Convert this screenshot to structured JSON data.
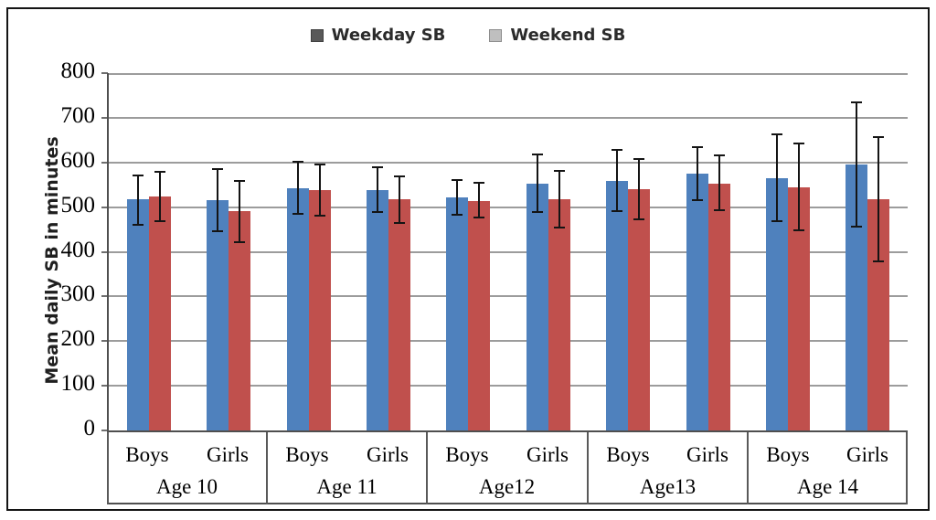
{
  "figure": {
    "background": "#ffffff",
    "border_color": "#141414"
  },
  "legend": {
    "items": [
      {
        "label": "Weekday SB",
        "swatch_color": "#595959",
        "swatch_border": "#404040"
      },
      {
        "label": "Weekend SB",
        "swatch_color": "#bfbfbf",
        "swatch_border": "#8c8c8c"
      }
    ]
  },
  "chart_data": {
    "type": "bar",
    "title": "",
    "ylabel": "Mean daily SB in minutes",
    "xlabel": "",
    "ylim": [
      0,
      800
    ],
    "yticks": [
      0,
      100,
      200,
      300,
      400,
      500,
      600,
      700,
      800
    ],
    "grid": true,
    "legend_position": "top-center",
    "grid_color": "#9c9c9c",
    "axis_color": "#4f4f4f",
    "error_bar_color": "#141414",
    "categories": [
      {
        "age": "Age 10",
        "sex": "Boys"
      },
      {
        "age": "Age 10",
        "sex": "Girls"
      },
      {
        "age": "Age 11",
        "sex": "Boys"
      },
      {
        "age": "Age 11",
        "sex": "Girls"
      },
      {
        "age": "Age12",
        "sex": "Boys"
      },
      {
        "age": "Age12",
        "sex": "Girls"
      },
      {
        "age": "Age13",
        "sex": "Boys"
      },
      {
        "age": "Age13",
        "sex": "Girls"
      },
      {
        "age": "Age 14",
        "sex": "Boys"
      },
      {
        "age": "Age 14",
        "sex": "Girls"
      }
    ],
    "age_groups": [
      {
        "label": "Age 10",
        "span": 2
      },
      {
        "label": "Age 11",
        "span": 2
      },
      {
        "label": "Age12",
        "span": 2
      },
      {
        "label": "Age13",
        "span": 2
      },
      {
        "label": "Age 14",
        "span": 2
      }
    ],
    "series": [
      {
        "name": "Weekday SB",
        "color": "#4f81bd",
        "values": [
          517,
          515,
          542,
          538,
          522,
          553,
          559,
          574,
          565,
          595
        ],
        "error_low": [
          459,
          444,
          483,
          486,
          481,
          487,
          490,
          513,
          466,
          454
        ],
        "error_high": [
          573,
          588,
          603,
          592,
          563,
          620,
          631,
          637,
          664,
          737
        ]
      },
      {
        "name": "Weekend SB",
        "color": "#c0504d",
        "values": [
          523,
          491,
          538,
          517,
          513,
          517,
          540,
          553,
          544,
          517
        ],
        "error_low": [
          466,
          420,
          479,
          463,
          475,
          452,
          471,
          491,
          446,
          376
        ],
        "error_high": [
          581,
          561,
          598,
          571,
          556,
          583,
          610,
          617,
          644,
          659
        ]
      }
    ]
  }
}
